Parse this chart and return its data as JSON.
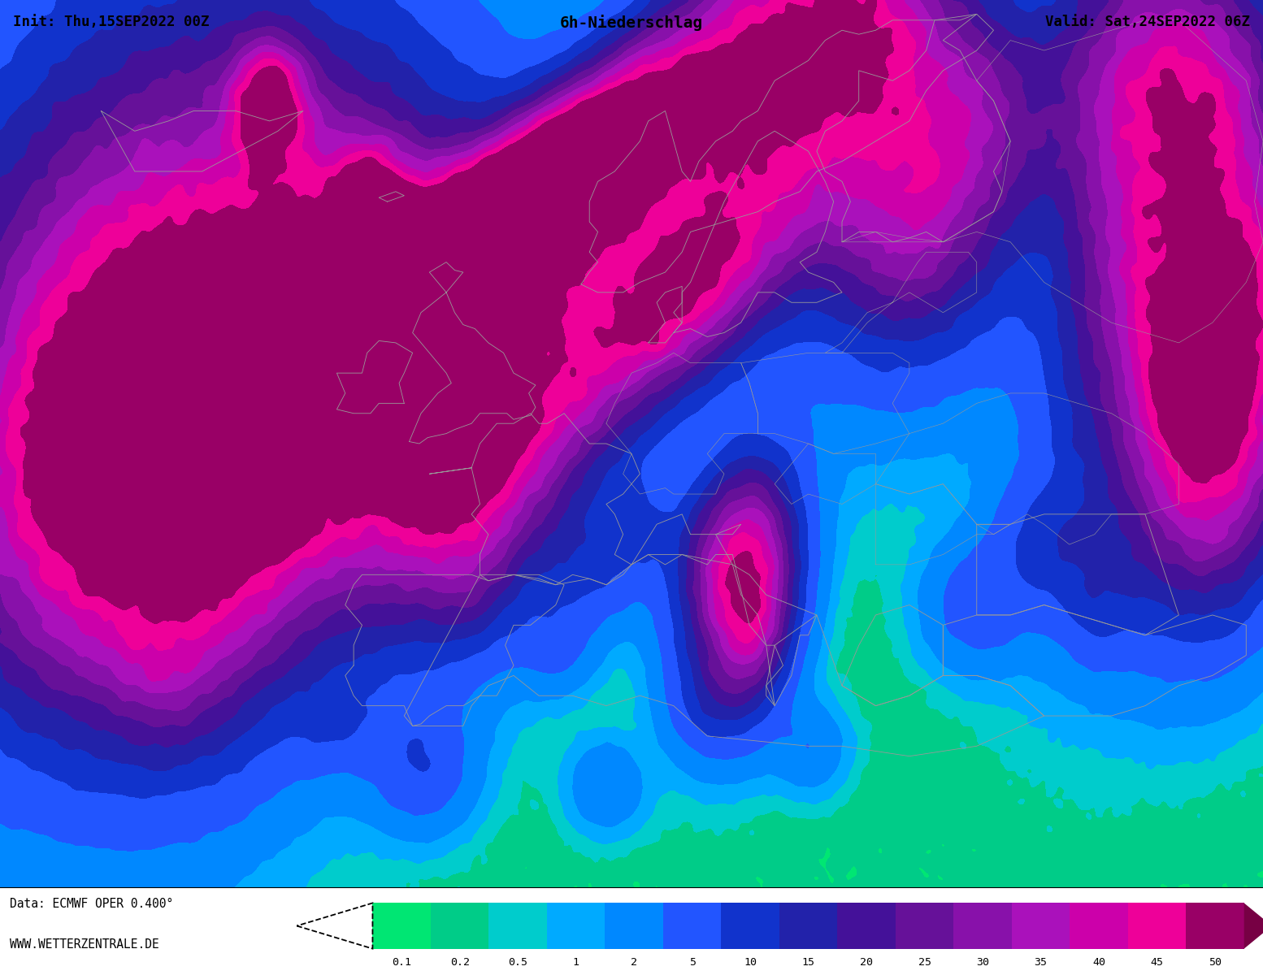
{
  "title_center": "6h-Niederschlag",
  "title_left": "Init: Thu,15SEP2022 00Z",
  "title_right": "Valid: Sat,24SEP2022 06Z",
  "footer_left1": "Data: ECMWF OPER 0.400°",
  "footer_left2": "WWW.WETTERZENTRALE.DE",
  "colorbar_levels": [
    0.1,
    0.2,
    0.5,
    1,
    2,
    5,
    10,
    15,
    20,
    25,
    30,
    35,
    40,
    45,
    50
  ],
  "colorbar_colors": [
    "#00dd66",
    "#00cc77",
    "#00cccc",
    "#00bbee",
    "#0099ff",
    "#3366ff",
    "#2244dd",
    "#3322cc",
    "#5522bb",
    "#7722bb",
    "#9922bb",
    "#bb22bb",
    "#dd00aa",
    "#ee1199",
    "#bb0077"
  ],
  "colorbar_colors_display": [
    "#00e673",
    "#00cc88",
    "#00cccc",
    "#00aaff",
    "#0088ff",
    "#2255ff",
    "#1133cc",
    "#2222aa",
    "#441199",
    "#661199",
    "#8811aa",
    "#aa11bb",
    "#cc00aa",
    "#ee0099",
    "#990066"
  ],
  "background_color": "#ffffff",
  "map_bg": "#ffffff",
  "border_color": "#aaaaaa",
  "fig_width": 15.54,
  "fig_height": 12.0,
  "lon_min": -30,
  "lon_max": 45,
  "lat_min": 28,
  "lat_max": 72
}
